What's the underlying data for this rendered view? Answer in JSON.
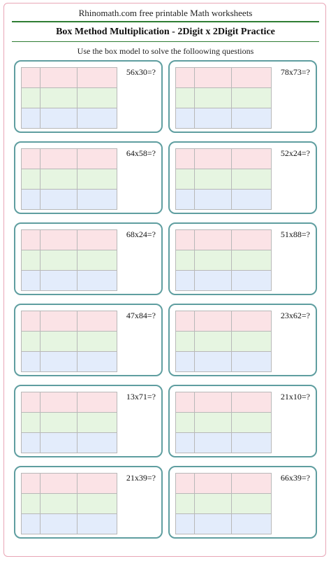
{
  "header": {
    "site_title": "Rhinomath.com free printable Math worksheets",
    "sheet_title": "Box Method Multiplication - 2Digit x 2Digit Practice",
    "instructions": "Use the box model to solve the folloowing questions"
  },
  "problems": [
    {
      "text": "56x30=?"
    },
    {
      "text": "78x73=?"
    },
    {
      "text": "64x58=?"
    },
    {
      "text": "52x24=?"
    },
    {
      "text": "68x24=?"
    },
    {
      "text": "51x88=?"
    },
    {
      "text": "47x84=?"
    },
    {
      "text": "23x62=?"
    },
    {
      "text": "13x71=?"
    },
    {
      "text": "21x10=?"
    },
    {
      "text": "21x39=?"
    },
    {
      "text": "66x39=?"
    }
  ],
  "colors": {
    "accent_rule": "#2e7d32",
    "card_border": "#5f9ea0",
    "row_1": "#fbe3e6",
    "row_2": "#e6f5e1",
    "row_3": "#e3ecfb"
  }
}
